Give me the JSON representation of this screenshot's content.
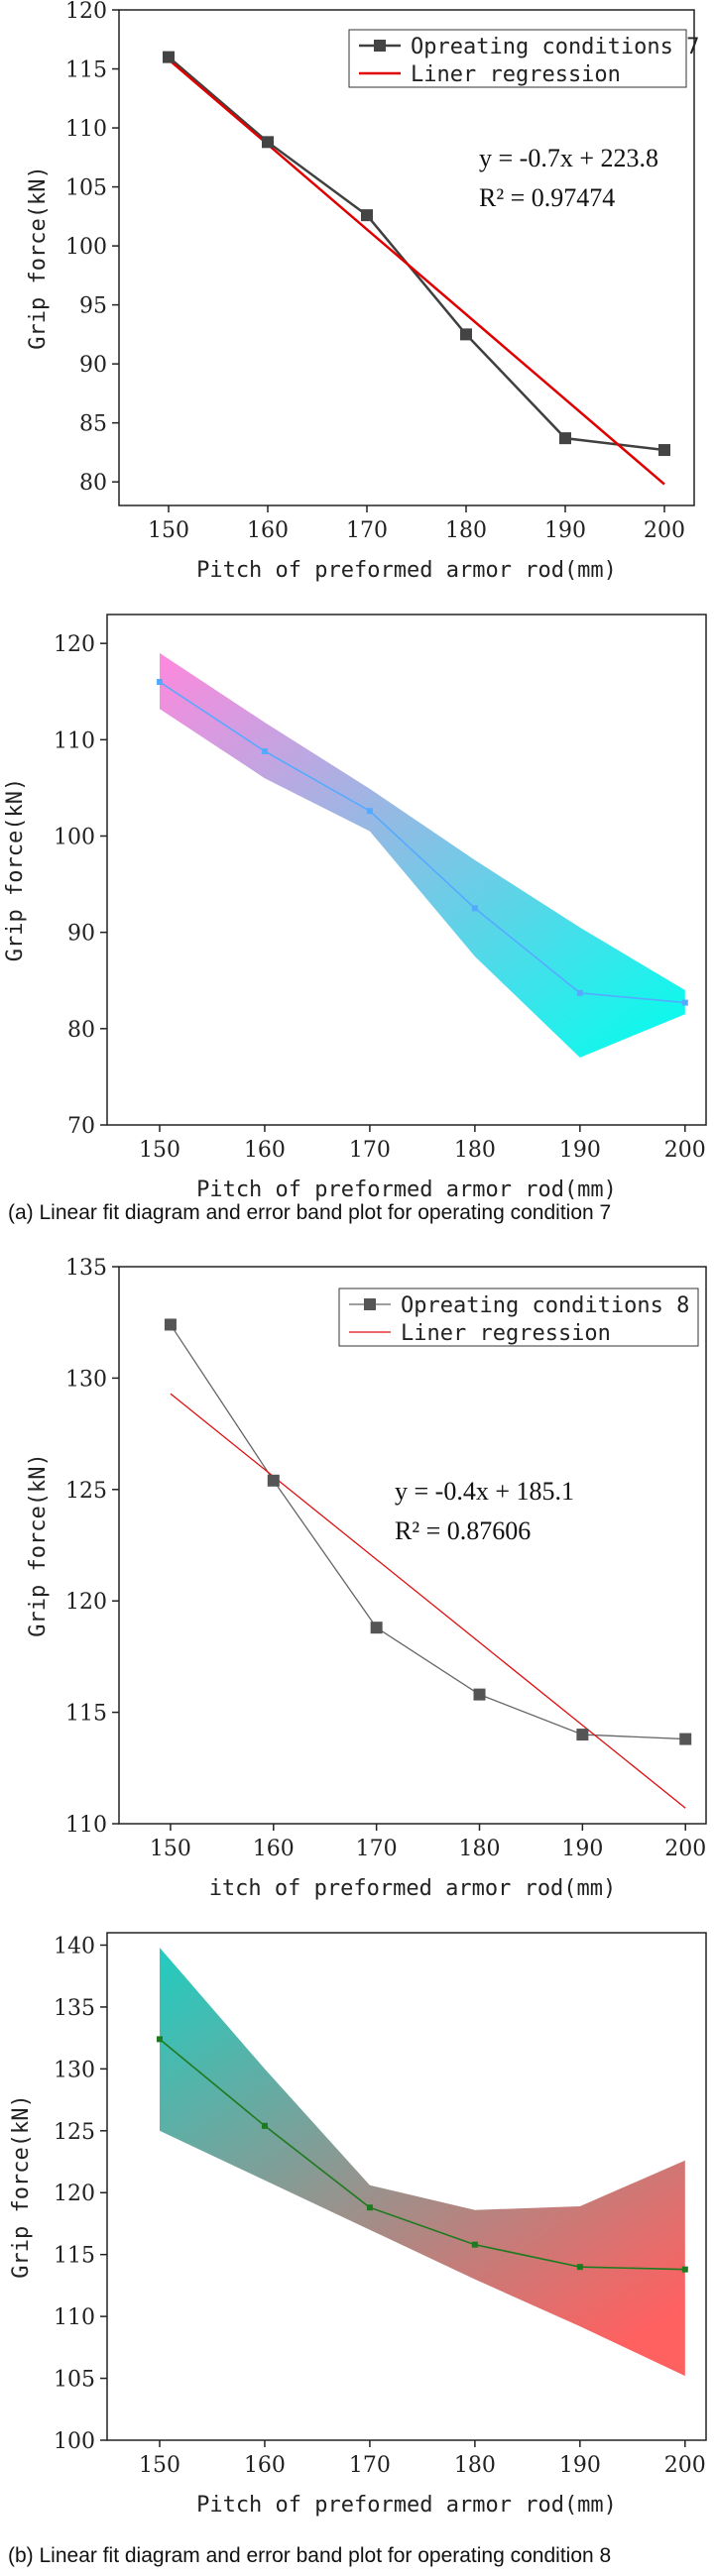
{
  "chart_data": [
    {
      "type": "line",
      "x": [
        150,
        160,
        170,
        180,
        190,
        200
      ],
      "series": [
        {
          "name": "Opreating conditions 7",
          "values": [
            116.0,
            108.8,
            102.6,
            92.5,
            83.7,
            82.7
          ],
          "color": "#404040"
        },
        {
          "name": "Liner regression",
          "line": [
            [
              150,
              115.8
            ],
            [
              200,
              79.8
            ]
          ],
          "color": "#e00000"
        }
      ],
      "equation": "y = -0.7x + 223.8",
      "r2": "R² = 0.97474",
      "xlabel": "Pitch of preformed armor rod(mm)",
      "ylabel": "Grip force(kN)",
      "xticks": [
        150,
        160,
        170,
        180,
        190,
        200
      ],
      "yticks": [
        80,
        85,
        90,
        95,
        100,
        105,
        110,
        115,
        120
      ],
      "xlim": [
        145,
        203
      ],
      "ylim": [
        78,
        120
      ],
      "legend_position": "top-right",
      "grid": false
    },
    {
      "type": "area",
      "x": [
        150,
        160,
        170,
        180,
        190,
        200
      ],
      "values": [
        116.0,
        108.8,
        102.6,
        92.5,
        83.7,
        82.7
      ],
      "upper": [
        119.0,
        111.8,
        104.9,
        97.5,
        90.5,
        84.0
      ],
      "lower": [
        113.2,
        106.0,
        100.5,
        87.5,
        77.0,
        81.5
      ],
      "band_colors": [
        "#ff88dd",
        "#00ffee"
      ],
      "line_color": "#55aaff",
      "xlabel": "Pitch of preformed armor rod(mm)",
      "ylabel": "Grip force(kN)",
      "xticks": [
        150,
        160,
        170,
        180,
        190,
        200
      ],
      "yticks": [
        70,
        80,
        90,
        100,
        110,
        120
      ],
      "xlim": [
        145,
        202
      ],
      "ylim": [
        70,
        123
      ],
      "grid": false
    },
    {
      "type": "line",
      "x": [
        150,
        160,
        170,
        180,
        190,
        200
      ],
      "series": [
        {
          "name": "Opreating conditions 8",
          "values": [
            132.4,
            125.4,
            118.8,
            115.8,
            114.0,
            113.8
          ],
          "color": "#666666"
        },
        {
          "name": "Liner regression",
          "line": [
            [
              150,
              129.3
            ],
            [
              200,
              110.7
            ]
          ],
          "color": "#e01010"
        }
      ],
      "equation": "y = -0.4x + 185.1",
      "r2": "R² = 0.87606",
      "xlabel": "itch of preformed armor rod(mm)",
      "ylabel": "Grip force(kN)",
      "xticks": [
        150,
        160,
        170,
        180,
        190,
        200
      ],
      "yticks": [
        110,
        115,
        120,
        125,
        130,
        135
      ],
      "xlim": [
        145,
        202
      ],
      "ylim": [
        110,
        135
      ],
      "legend_position": "top-right",
      "grid": false
    },
    {
      "type": "area",
      "x": [
        150,
        160,
        170,
        180,
        190,
        200
      ],
      "values": [
        132.4,
        125.4,
        118.8,
        115.8,
        114.0,
        113.8
      ],
      "upper": [
        139.8,
        130.0,
        120.6,
        118.6,
        118.9,
        122.6
      ],
      "lower": [
        125.0,
        121.0,
        117.0,
        113.0,
        109.2,
        105.2
      ],
      "band_colors": [
        "#22ccc0",
        "#ff6060"
      ],
      "line_color": "#1e7a1e",
      "xlabel": "Pitch of preformed armor rod(mm)",
      "ylabel": "Grip force(kN)",
      "xticks": [
        150,
        160,
        170,
        180,
        190,
        200
      ],
      "yticks": [
        100,
        105,
        110,
        115,
        120,
        125,
        130,
        135,
        140
      ],
      "xlim": [
        145,
        202
      ],
      "ylim": [
        100,
        141
      ],
      "grid": false
    }
  ],
  "captions": {
    "a": "(a) Linear fit diagram and error band plot for operating condition 7",
    "b": "(b) Linear fit diagram and error band plot for operating condition 8"
  }
}
